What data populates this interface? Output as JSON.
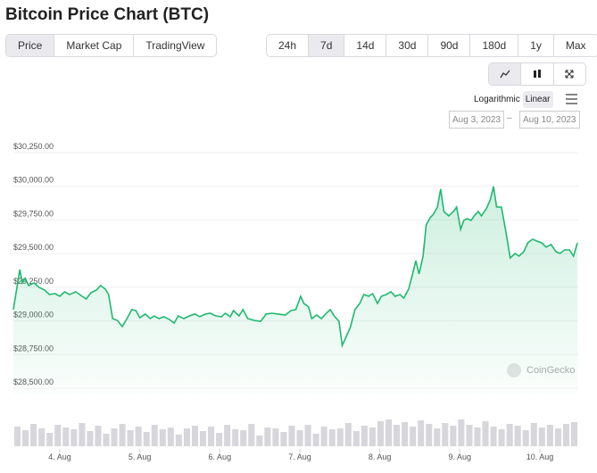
{
  "header": {
    "title": "Bitcoin Price Chart (BTC)"
  },
  "tabs": [
    "Price",
    "Market Cap",
    "TradingView"
  ],
  "selected_tab": 0,
  "ranges": [
    "24h",
    "7d",
    "14d",
    "30d",
    "90d",
    "180d",
    "1y",
    "Max"
  ],
  "selected_range": 1,
  "scale_options": [
    "Logarithmic",
    "Linear"
  ],
  "selected_scale": 1,
  "date_range": {
    "from": "Aug 3, 2023",
    "to": "Aug 10, 2023"
  },
  "watermark": "CoinGecko",
  "chart_data": {
    "type": "line",
    "color": "#1fb86f",
    "x": [
      3.42,
      3.5,
      3.53,
      3.57,
      3.61,
      3.68,
      3.74,
      3.81,
      3.87,
      3.94,
      4.0,
      4.06,
      4.12,
      4.2,
      4.28,
      4.33,
      4.39,
      4.46,
      4.51,
      4.57,
      4.61,
      4.66,
      4.72,
      4.78,
      4.84,
      4.9,
      4.95,
      5.0,
      5.07,
      5.13,
      5.18,
      5.24,
      5.3,
      5.37,
      5.43,
      5.48,
      5.55,
      5.62,
      5.69,
      5.75,
      5.82,
      5.88,
      5.95,
      6.02,
      6.07,
      6.13,
      6.17,
      6.24,
      6.29,
      6.35,
      6.43,
      6.51,
      6.58,
      6.65,
      6.73,
      6.82,
      6.89,
      6.95,
      7.01,
      7.05,
      7.11,
      7.15,
      7.21,
      7.27,
      7.32,
      7.38,
      7.43,
      7.49,
      7.53,
      7.58,
      7.63,
      7.69,
      7.75,
      7.8,
      7.86,
      7.91,
      7.97,
      8.02,
      8.08,
      8.14,
      8.19,
      8.25,
      8.3,
      8.36,
      8.41,
      8.45,
      8.49,
      8.54,
      8.58,
      8.63,
      8.67,
      8.72,
      8.76,
      8.8,
      8.86,
      8.92,
      8.96,
      9.01,
      9.05,
      9.09,
      9.14,
      9.18,
      9.23,
      9.27,
      9.33,
      9.38,
      9.42,
      9.46,
      9.52,
      9.57,
      9.63,
      9.69,
      9.74,
      9.8,
      9.85,
      9.91,
      9.96,
      10.02,
      10.08,
      10.14,
      10.2,
      10.25,
      10.31,
      10.37,
      10.42,
      10.47
    ],
    "values": [
      29044,
      29342,
      29243,
      29276,
      29223,
      29243,
      29209,
      29190,
      29156,
      29163,
      29143,
      29176,
      29156,
      29176,
      29143,
      29123,
      29170,
      29190,
      29223,
      29196,
      29156,
      28977,
      28964,
      28918,
      28977,
      29044,
      29037,
      28984,
      29011,
      28977,
      28997,
      28977,
      28991,
      28971,
      28944,
      28997,
      28977,
      28997,
      29011,
      28991,
      29011,
      29017,
      28997,
      28991,
      29017,
      28991,
      29037,
      28997,
      29044,
      28977,
      28964,
      28957,
      29011,
      29017,
      29011,
      29004,
      29037,
      29044,
      29143,
      29090,
      29064,
      28977,
      29004,
      28977,
      29011,
      29044,
      28997,
      28957,
      28778,
      28845,
      28911,
      29044,
      29090,
      29156,
      29143,
      29163,
      29090,
      29143,
      29156,
      29176,
      29143,
      29156,
      29130,
      29196,
      29309,
      29408,
      29309,
      29441,
      29674,
      29727,
      29753,
      29806,
      29939,
      29773,
      29740,
      29773,
      29806,
      29640,
      29707,
      29720,
      29707,
      29740,
      29773,
      29740,
      29793,
      29859,
      29959,
      29806,
      29806,
      29640,
      29428,
      29461,
      29441,
      29475,
      29541,
      29567,
      29554,
      29541,
      29508,
      29528,
      29475,
      29461,
      29488,
      29488,
      29441,
      29541
    ],
    "xlim": [
      3.42,
      10.48
    ],
    "xticks": [
      {
        "value": 4,
        "label": "4. Aug"
      },
      {
        "value": 5,
        "label": "5. Aug"
      },
      {
        "value": 6,
        "label": "6. Aug"
      },
      {
        "value": 7,
        "label": "7. Aug"
      },
      {
        "value": 8,
        "label": "8. Aug"
      },
      {
        "value": 9,
        "label": "9. Aug"
      },
      {
        "value": 10,
        "label": "10. Aug"
      }
    ],
    "ylim": [
      28500,
      30250
    ],
    "yticks": [
      {
        "value": 28500,
        "label": "$28,500.00"
      },
      {
        "value": 28750,
        "label": "$28,750.00"
      },
      {
        "value": 29000,
        "label": "$29,000.00"
      },
      {
        "value": 29250,
        "label": "$29,250.00"
      },
      {
        "value": 29500,
        "label": "$29,500.00"
      },
      {
        "value": 29750,
        "label": "$29,750.00"
      },
      {
        "value": 30000,
        "label": "$30,000.00"
      },
      {
        "value": 30250,
        "label": "$30,250.00"
      }
    ],
    "grid": true,
    "volume": {
      "color": "#d6d6dc",
      "values": [
        22,
        18,
        25,
        20,
        15,
        24,
        21,
        19,
        26,
        17,
        23,
        14,
        20,
        25,
        18,
        22,
        16,
        24,
        19,
        21,
        13,
        20,
        23,
        17,
        22,
        15,
        24,
        19,
        18,
        25,
        12,
        21,
        20,
        16,
        23,
        18,
        24,
        14,
        22,
        19,
        20,
        26,
        17,
        23,
        21,
        28,
        30,
        24,
        27,
        22,
        29,
        25,
        20,
        26,
        23,
        30,
        24,
        21,
        28,
        22,
        19,
        25,
        23,
        18,
        26,
        21,
        24,
        20,
        25,
        27
      ]
    }
  }
}
